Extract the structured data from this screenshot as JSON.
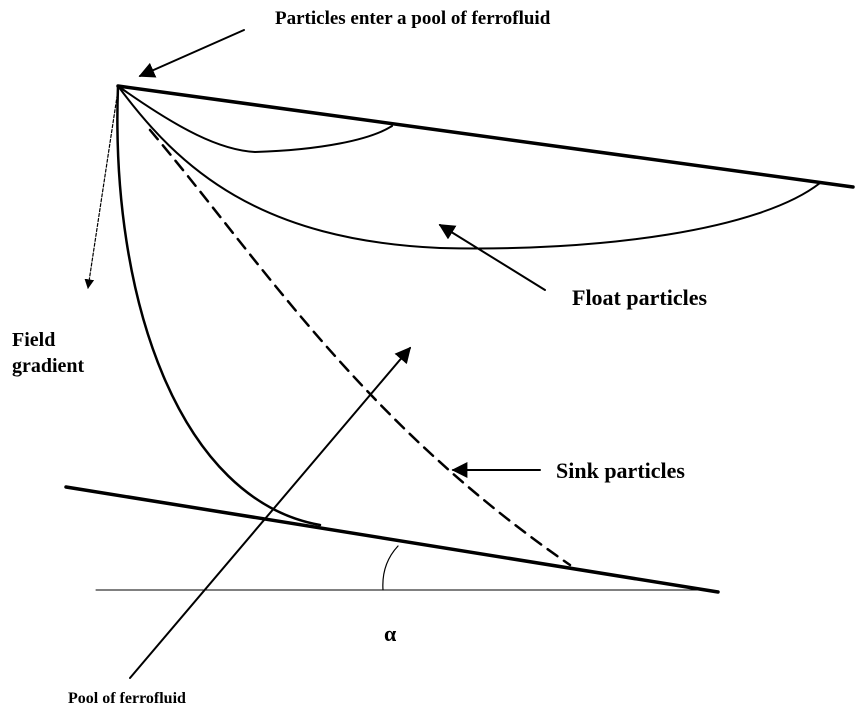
{
  "labels": {
    "entry": "Particles enter a pool of ferrofluid",
    "float": "Float particles",
    "sink": "Sink particles",
    "field1": "Field",
    "field2": "gradient",
    "alpha": "α",
    "pool": "Pool of ferrofluid"
  }
}
